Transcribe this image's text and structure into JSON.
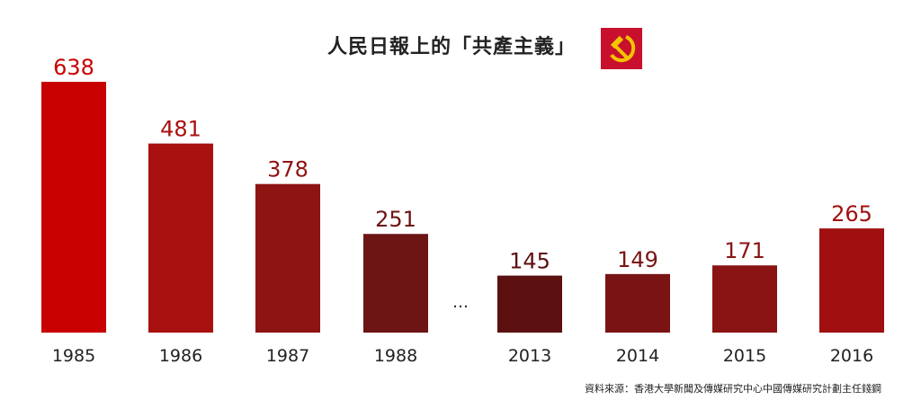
{
  "title": "人民日報上的「共產主義」",
  "emblem": {
    "icon": "hammer-and-sickle-icon",
    "background": "#c8102e",
    "symbol_color": "#f5c400"
  },
  "source": "資料來源：香港大學新聞及傳媒研究中心中國傳媒研究計劃主任錢鋼",
  "gap_marker": "…",
  "chart_data": {
    "type": "bar",
    "title": "人民日報上的「共產主義」",
    "xlabel": "",
    "ylabel": "",
    "categories": [
      "1985",
      "1986",
      "1987",
      "1988",
      "2013",
      "2014",
      "2015",
      "2016"
    ],
    "values": [
      638,
      481,
      378,
      251,
      145,
      149,
      171,
      265
    ],
    "colors": [
      "#c80000",
      "#a91010",
      "#8e1414",
      "#6d1414",
      "#5c1010",
      "#7a1414",
      "#8a1414",
      "#a01010"
    ],
    "label_colors": [
      "#c80000",
      "#a91010",
      "#8e1414",
      "#6d1414",
      "#5c1010",
      "#7a1414",
      "#8a1414",
      "#a01010"
    ],
    "ylim": [
      0,
      638
    ],
    "grid": false,
    "legend": "none"
  }
}
